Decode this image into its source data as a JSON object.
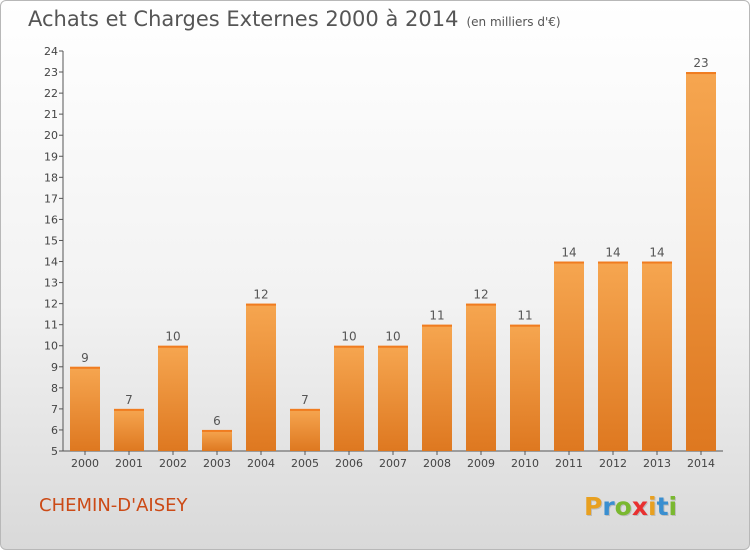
{
  "chart_data": {
    "type": "bar",
    "title": "Achats et Charges Externes 2000 à 2014",
    "unit_label": "(en milliers d'€)",
    "categories": [
      "2000",
      "2001",
      "2002",
      "2003",
      "2004",
      "2005",
      "2006",
      "2007",
      "2008",
      "2009",
      "2010",
      "2011",
      "2012",
      "2013",
      "2014"
    ],
    "values": [
      9,
      7,
      10,
      6,
      12,
      7,
      10,
      10,
      11,
      12,
      11,
      14,
      14,
      14,
      23
    ],
    "ylim": [
      5,
      24
    ],
    "yticks": [
      5,
      6,
      7,
      8,
      9,
      10,
      11,
      12,
      13,
      14,
      15,
      16,
      17,
      18,
      19,
      20,
      21,
      22,
      23,
      24
    ],
    "xlabel": "",
    "ylabel": "",
    "grid": false,
    "bar_color_light": "#f6a650",
    "bar_color_dark": "#de7820"
  },
  "footer": {
    "place_name": "CHEMIN-D'AISEY",
    "brand_letters": [
      "P",
      "r",
      "o",
      "x",
      "i",
      "t",
      "i"
    ],
    "brand_colors": [
      "#e8a020",
      "#3a8fd0",
      "#7ab830",
      "#e83030",
      "#e8a020",
      "#3a8fd0",
      "#7ab830"
    ]
  }
}
